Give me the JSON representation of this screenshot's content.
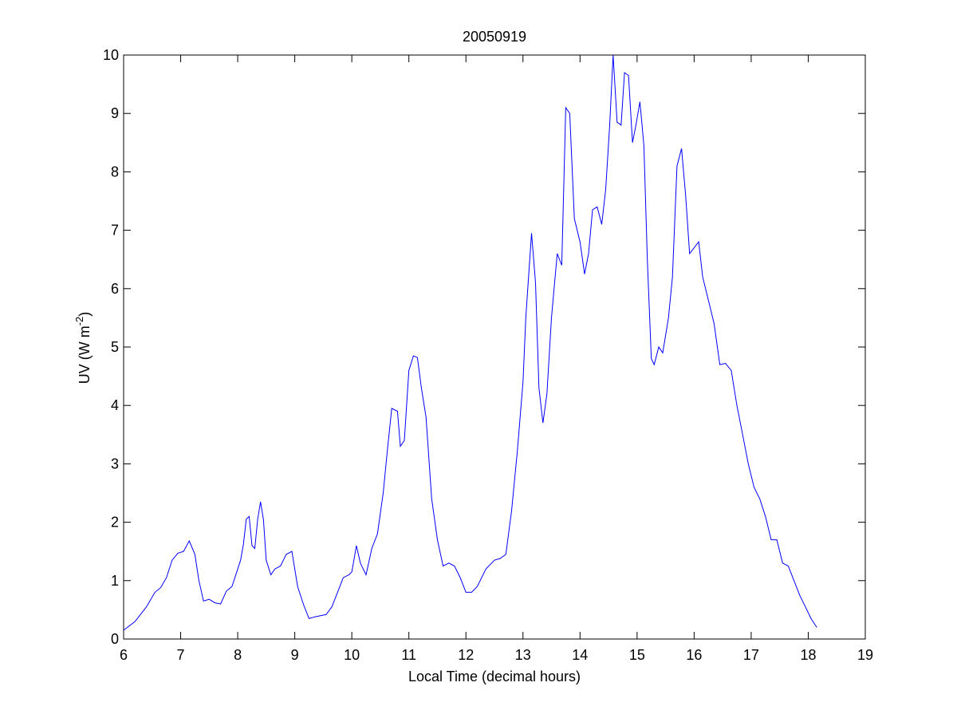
{
  "chart_data": {
    "type": "line",
    "title": "20050919",
    "xlabel": "Local Time (decimal hours)",
    "ylabel": {
      "prefix": "UV (W m",
      "superscript": "-2",
      "suffix": ")"
    },
    "xlim": [
      6,
      19
    ],
    "ylim": [
      0,
      10
    ],
    "xticks": [
      6,
      7,
      8,
      9,
      10,
      11,
      12,
      13,
      14,
      15,
      16,
      17,
      18,
      19
    ],
    "yticks": [
      0,
      1,
      2,
      3,
      4,
      5,
      6,
      7,
      8,
      9,
      10
    ],
    "grid": false,
    "line_color": "#0000ff",
    "series": [
      {
        "x": [
          6.0,
          6.2,
          6.4,
          6.55,
          6.65,
          6.75,
          6.85,
          6.95,
          7.05,
          7.15,
          7.25,
          7.32,
          7.4,
          7.5,
          7.6,
          7.7,
          7.8,
          7.9,
          8.0,
          8.05,
          8.1,
          8.15,
          8.2,
          8.25,
          8.3,
          8.35,
          8.4,
          8.45,
          8.5,
          8.58,
          8.65,
          8.75,
          8.85,
          8.95,
          9.05,
          9.15,
          9.25,
          9.35,
          9.45,
          9.55,
          9.65,
          9.75,
          9.85,
          9.95,
          10.0,
          10.08,
          10.15,
          10.25,
          10.35,
          10.45,
          10.55,
          10.62,
          10.7,
          10.8,
          10.85,
          10.92,
          11.0,
          11.08,
          11.15,
          11.22,
          11.3,
          11.4,
          11.5,
          11.6,
          11.7,
          11.8,
          11.9,
          12.0,
          12.1,
          12.2,
          12.35,
          12.5,
          12.6,
          12.7,
          12.8,
          12.9,
          13.0,
          13.05,
          13.15,
          13.22,
          13.28,
          13.35,
          13.42,
          13.5,
          13.6,
          13.68,
          13.75,
          13.82,
          13.9,
          14.0,
          14.08,
          14.15,
          14.22,
          14.3,
          14.38,
          14.45,
          14.52,
          14.58,
          14.65,
          14.72,
          14.78,
          14.85,
          14.92,
          14.98,
          15.05,
          15.12,
          15.18,
          15.25,
          15.3,
          15.38,
          15.45,
          15.55,
          15.62,
          15.7,
          15.78,
          15.85,
          15.92,
          16.0,
          16.08,
          16.15,
          16.25,
          16.35,
          16.45,
          16.55,
          16.65,
          16.75,
          16.85,
          16.95,
          17.05,
          17.15,
          17.25,
          17.35,
          17.45,
          17.55,
          17.65,
          17.75,
          17.85,
          17.95,
          18.05,
          18.15
        ],
        "values": [
          0.15,
          0.3,
          0.55,
          0.8,
          0.88,
          1.05,
          1.35,
          1.47,
          1.5,
          1.68,
          1.45,
          1.0,
          0.65,
          0.68,
          0.62,
          0.6,
          0.82,
          0.9,
          1.2,
          1.35,
          1.62,
          2.05,
          2.1,
          1.6,
          1.55,
          2.05,
          2.35,
          2.05,
          1.35,
          1.1,
          1.2,
          1.25,
          1.45,
          1.5,
          0.9,
          0.6,
          0.35,
          0.38,
          0.4,
          0.42,
          0.55,
          0.8,
          1.05,
          1.1,
          1.15,
          1.6,
          1.3,
          1.1,
          1.55,
          1.8,
          2.5,
          3.2,
          3.95,
          3.9,
          3.3,
          3.4,
          4.6,
          4.85,
          4.82,
          4.3,
          3.8,
          2.4,
          1.7,
          1.25,
          1.3,
          1.25,
          1.05,
          0.8,
          0.8,
          0.9,
          1.2,
          1.35,
          1.38,
          1.45,
          2.2,
          3.2,
          4.4,
          5.5,
          6.95,
          6.1,
          4.3,
          3.7,
          4.2,
          5.5,
          6.6,
          6.4,
          9.1,
          9.0,
          7.2,
          6.8,
          6.25,
          6.6,
          7.35,
          7.4,
          7.1,
          7.7,
          8.8,
          10.0,
          8.85,
          8.8,
          9.7,
          9.65,
          8.5,
          8.8,
          9.2,
          8.45,
          6.5,
          4.8,
          4.7,
          5.0,
          4.9,
          5.5,
          6.2,
          8.1,
          8.4,
          7.6,
          6.6,
          6.7,
          6.8,
          6.2,
          5.8,
          5.4,
          4.7,
          4.72,
          4.6,
          4.0,
          3.5,
          3.0,
          2.6,
          2.4,
          2.1,
          1.7,
          1.7,
          1.3,
          1.25,
          1.0,
          0.75,
          0.55,
          0.35,
          0.2
        ]
      }
    ]
  }
}
